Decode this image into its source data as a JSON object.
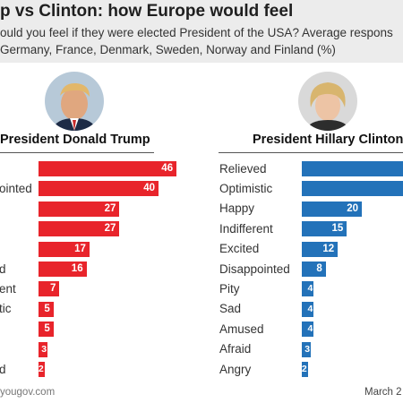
{
  "header": {
    "title": "p vs Clinton: how Europe would feel",
    "subtitle_line1": "ould you feel if they were elected President of the USA? Average respons",
    "subtitle_line2": "Germany, France, Denmark, Sweden, Norway and Finland (%)"
  },
  "footer": {
    "source": "yougov.com",
    "date": "March 2"
  },
  "colors": {
    "trump": "#e8242b",
    "clinton": "#2372b9"
  },
  "chart_data": [
    {
      "type": "bar",
      "title": "President Donald Trump",
      "categories": [
        "",
        "ointed",
        "",
        "",
        "",
        "d",
        "ent",
        "tic",
        "",
        "",
        "d"
      ],
      "values": [
        46,
        40,
        27,
        27,
        17,
        16,
        7,
        5,
        5,
        3,
        2
      ]
    },
    {
      "type": "bar",
      "title": "President Hillary Clinton",
      "categories": [
        "Relieved",
        "Optimistic",
        "Happy",
        "Indifferent",
        "Excited",
        "Disappointed",
        "Pity",
        "Sad",
        "Amused",
        "Afraid",
        "Angry"
      ],
      "values": [
        null,
        null,
        20,
        15,
        12,
        8,
        4,
        4,
        4,
        3,
        2
      ]
    }
  ]
}
